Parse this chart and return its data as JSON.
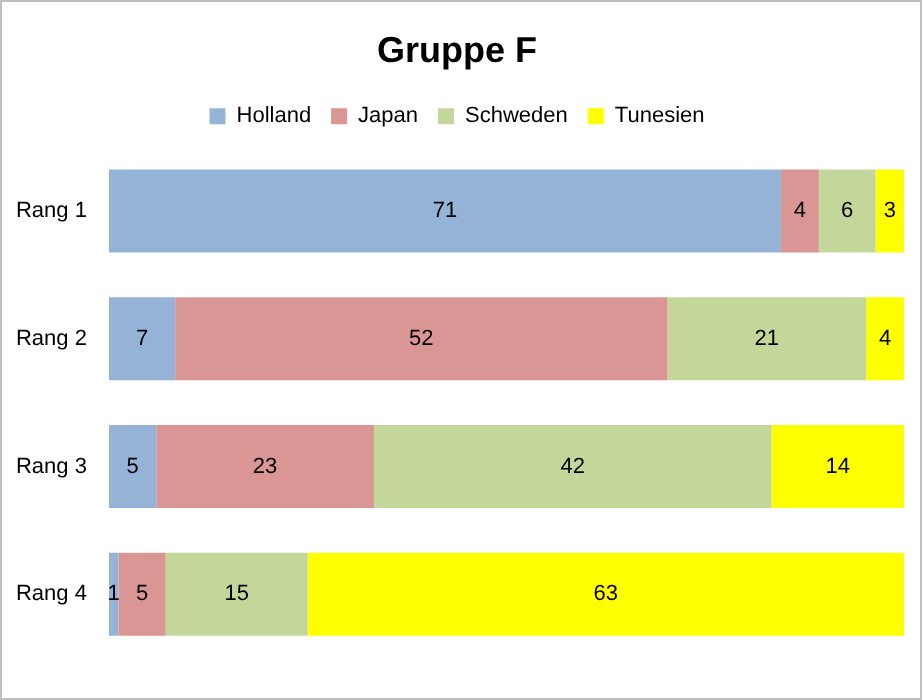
{
  "chart_data": {
    "type": "bar",
    "title": "Gruppe F",
    "orientation": "horizontal",
    "stacked": true,
    "categories": [
      "Rang 1",
      "Rang 2",
      "Rang 3",
      "Rang 4"
    ],
    "series": [
      {
        "name": "Holland",
        "color": "#95b3d7",
        "values": [
          71,
          7,
          5,
          1
        ]
      },
      {
        "name": "Japan",
        "color": "#da9694",
        "values": [
          4,
          52,
          23,
          5
        ]
      },
      {
        "name": "Schweden",
        "color": "#c4d79b",
        "values": [
          6,
          21,
          42,
          15
        ]
      },
      {
        "name": "Tunesien",
        "color": "#ffff00",
        "values": [
          3,
          4,
          14,
          63
        ]
      }
    ],
    "xlim": [
      0,
      84
    ],
    "data_labels": true,
    "legend": "top",
    "tick_labels": "y"
  }
}
